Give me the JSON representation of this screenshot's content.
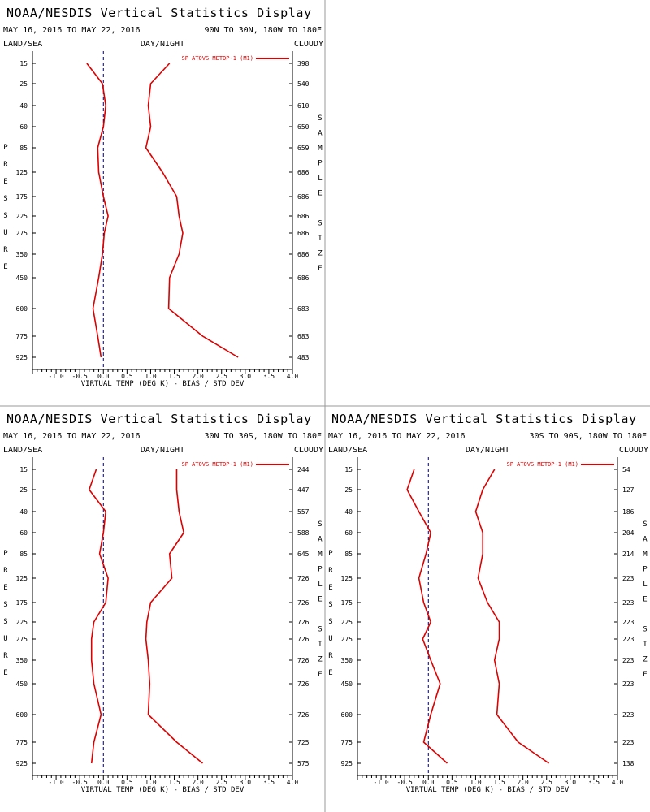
{
  "colors": {
    "series": "#dd0000",
    "axis": "#000000",
    "zero_line": "#000066",
    "background": "#ffffff",
    "panel_border": "#999999"
  },
  "chart_data": [
    {
      "type": "line",
      "title": "NOAA/NESDIS Vertical Statistics Display",
      "date_range": "MAY 16, 2016 TO MAY 22, 2016",
      "region": "90N TO 30N, 180W TO 180E",
      "filters": {
        "left": "LAND/SEA",
        "center": "DAY/NIGHT",
        "right": "CLOUDY"
      },
      "ylabel": "PRESSURE",
      "ylabel_right": "SAMPLE SIZE",
      "xlabel": "VIRTUAL TEMP (DEG K) - BIAS / STD DEV",
      "legend": "SP ATOVS METOP-1 (M1)",
      "legend_position": "top-right",
      "xlim": [
        -1.5,
        4.0
      ],
      "xticks": [
        "-1.0",
        "-0.5",
        "0.0",
        "0.5",
        "1.0",
        "1.5",
        "2.0",
        "2.5",
        "3.0",
        "3.5",
        "4.0"
      ],
      "pressure_levels": [
        "15",
        "25",
        "40",
        "60",
        "85",
        "125",
        "175",
        "225",
        "275",
        "350",
        "450",
        "600",
        "775",
        "925"
      ],
      "sample_size": [
        "398",
        "540",
        "610",
        "650",
        "659",
        "686",
        "686",
        "686",
        "686",
        "686",
        "686",
        "683",
        "683",
        "483"
      ],
      "series": [
        {
          "name": "bias",
          "values": [
            -0.35,
            -0.02,
            0.05,
            0.0,
            -0.12,
            -0.1,
            0.0,
            0.1,
            0.02,
            -0.02,
            -0.1,
            -0.22,
            -0.12,
            -0.05
          ]
        },
        {
          "name": "std dev",
          "values": [
            1.4,
            1.0,
            0.95,
            1.0,
            0.9,
            1.25,
            1.55,
            1.6,
            1.68,
            1.6,
            1.4,
            1.38,
            2.1,
            2.85
          ]
        }
      ]
    },
    {
      "type": "line",
      "title": "NOAA/NESDIS Vertical Statistics Display",
      "date_range": "MAY 16, 2016 TO MAY 22, 2016",
      "region": "30N TO 30S, 180W TO 180E",
      "filters": {
        "left": "LAND/SEA",
        "center": "DAY/NIGHT",
        "right": "CLOUDY"
      },
      "ylabel": "PRESSURE",
      "ylabel_right": "SAMPLE SIZE",
      "xlabel": "VIRTUAL TEMP (DEG K) - BIAS / STD DEV",
      "legend": "SP ATOVS METOP-1 (M1)",
      "legend_position": "top-right",
      "xlim": [
        -1.5,
        4.0
      ],
      "xticks": [
        "-1.0",
        "-0.5",
        "0.0",
        "0.5",
        "1.0",
        "1.5",
        "2.0",
        "2.5",
        "3.0",
        "3.5",
        "4.0"
      ],
      "pressure_levels": [
        "15",
        "25",
        "40",
        "60",
        "85",
        "125",
        "175",
        "225",
        "275",
        "350",
        "450",
        "600",
        "775",
        "925"
      ],
      "sample_size": [
        "244",
        "447",
        "557",
        "588",
        "645",
        "726",
        "726",
        "726",
        "726",
        "726",
        "726",
        "726",
        "725",
        "575"
      ],
      "series": [
        {
          "name": "bias",
          "values": [
            -0.15,
            -0.3,
            0.05,
            0.0,
            -0.08,
            0.1,
            0.05,
            -0.2,
            -0.25,
            -0.25,
            -0.2,
            -0.05,
            -0.2,
            -0.25
          ]
        },
        {
          "name": "std dev",
          "values": [
            1.55,
            1.55,
            1.6,
            1.7,
            1.4,
            1.45,
            1.0,
            0.92,
            0.9,
            0.95,
            0.98,
            0.95,
            1.55,
            2.1
          ]
        }
      ]
    },
    {
      "type": "line",
      "title": "NOAA/NESDIS Vertical Statistics Display",
      "date_range": "MAY 16, 2016 TO MAY 22, 2016",
      "region": "30S TO 90S, 180W TO 180E",
      "filters": {
        "left": "LAND/SEA",
        "center": "DAY/NIGHT",
        "right": "CLOUDY"
      },
      "ylabel": "PRESSURE",
      "ylabel_right": "SAMPLE SIZE",
      "xlabel": "VIRTUAL TEMP (DEG K) - BIAS / STD DEV",
      "legend": "SP ATOVS METOP-1 (M1)",
      "legend_position": "top-right",
      "xlim": [
        -1.5,
        4.0
      ],
      "xticks": [
        "-1.0",
        "-0.5",
        "0.0",
        "0.5",
        "1.0",
        "1.5",
        "2.0",
        "2.5",
        "3.0",
        "3.5",
        "4.0"
      ],
      "pressure_levels": [
        "15",
        "25",
        "40",
        "60",
        "85",
        "125",
        "175",
        "225",
        "275",
        "350",
        "450",
        "600",
        "775",
        "925"
      ],
      "sample_size": [
        "54",
        "127",
        "186",
        "204",
        "214",
        "223",
        "223",
        "223",
        "223",
        "223",
        "223",
        "223",
        "223",
        "138"
      ],
      "series": [
        {
          "name": "bias",
          "values": [
            -0.3,
            -0.45,
            -0.2,
            0.05,
            -0.05,
            -0.2,
            -0.1,
            0.05,
            -0.12,
            0.05,
            0.25,
            0.05,
            -0.1,
            0.4
          ]
        },
        {
          "name": "std dev",
          "values": [
            1.4,
            1.15,
            1.0,
            1.15,
            1.15,
            1.05,
            1.25,
            1.5,
            1.5,
            1.4,
            1.5,
            1.45,
            1.9,
            2.55
          ]
        }
      ]
    }
  ]
}
